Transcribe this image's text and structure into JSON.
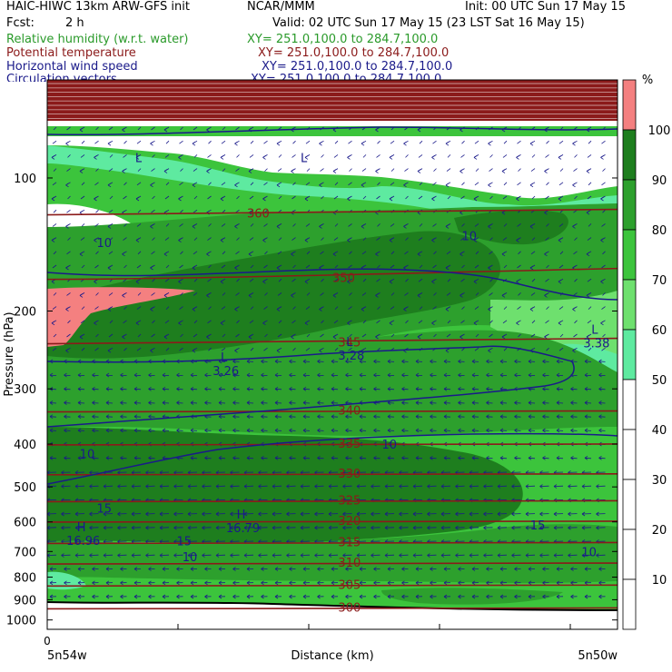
{
  "header": {
    "model": "HAIC-HIWC 13km ARW-GFS init",
    "org": "NCAR/MMM",
    "init": "Init: 00 UTC Sun 17 May 15",
    "fcst_label": "Fcst:",
    "fcst_value": "2 h",
    "valid": "Valid: 02 UTC Sun 17 May 15 (23 LST Sat 16 May 15)"
  },
  "fields": [
    {
      "name": "Relative humidity (w.r.t. water)",
      "xy": "XY= 251.0,100.0 to 284.7,100.0",
      "color": "#2a9a2a"
    },
    {
      "name": "Potential temperature",
      "xy": "XY= 251.0,100.0 to 284.7,100.0",
      "color": "#8b1a1a"
    },
    {
      "name": "Horizontal wind speed",
      "xy": "XY= 251.0,100.0 to 284.7,100.0",
      "color": "#1a1a8a"
    },
    {
      "name": "Circulation vectors",
      "xy": "XY= 251.0,100.0 to 284.7,100.0",
      "color": "#1a1a8a"
    }
  ],
  "chart_data": {
    "type": "heatmap",
    "title": "Relative humidity (w.r.t. water), potential temperature, horizontal wind speed, circulation vectors",
    "xlabel": "Distance (km)",
    "ylabel": "Pressure (hPa)",
    "x_tick_labels": [
      "0"
    ],
    "x_end_labels": [
      "5n54w",
      "5n50w"
    ],
    "y_ticks": [
      100,
      200,
      300,
      400,
      500,
      600,
      700,
      800,
      900,
      1000
    ],
    "ylim": [
      1050,
      60
    ],
    "y_scale": "log-pressure",
    "colorbar": {
      "unit": "%",
      "levels": [
        10,
        20,
        30,
        40,
        50,
        60,
        70,
        80,
        90,
        100
      ],
      "colors": [
        "#ffffff",
        "#ffffff",
        "#ffffff",
        "#ffffff",
        "#ffffff",
        "#5eeaa0",
        "#6ee06e",
        "#3cc43c",
        "#2da02d",
        "#1e7e1e",
        "#f48080"
      ]
    },
    "theta_contours": [
      {
        "label": "360",
        "p": 120,
        "x_frac": 0.37
      },
      {
        "label": "350",
        "p": 168,
        "x_frac": 0.52
      },
      {
        "label": "345",
        "p": 235,
        "x_frac": 0.53
      },
      {
        "label": "340",
        "p": 335,
        "x_frac": 0.53
      },
      {
        "label": "335",
        "p": 398,
        "x_frac": 0.53
      },
      {
        "label": "330",
        "p": 465,
        "x_frac": 0.53
      },
      {
        "label": "325",
        "p": 535,
        "x_frac": 0.53
      },
      {
        "label": "320",
        "p": 595,
        "x_frac": 0.53
      },
      {
        "label": "315",
        "p": 665,
        "x_frac": 0.53
      },
      {
        "label": "310",
        "p": 740,
        "x_frac": 0.53
      },
      {
        "label": "305",
        "p": 830,
        "x_frac": 0.53
      },
      {
        "label": "300",
        "p": 935,
        "x_frac": 0.53
      }
    ],
    "wind_contours": [
      {
        "label": "10",
        "p": 140,
        "x_frac": 0.1
      },
      {
        "label": "10",
        "p": 135,
        "x_frac": 0.74
      },
      {
        "label": "10",
        "p": 400,
        "x_frac": 0.6
      },
      {
        "label": "10",
        "p": 420,
        "x_frac": 0.07
      },
      {
        "label": "15",
        "p": 558,
        "x_frac": 0.1
      },
      {
        "label": "15",
        "p": 610,
        "x_frac": 0.86
      },
      {
        "label": "15",
        "p": 662,
        "x_frac": 0.24
      },
      {
        "label": "10",
        "p": 720,
        "x_frac": 0.25
      },
      {
        "label": "10",
        "p": 700,
        "x_frac": 0.95
      }
    ],
    "extrema": [
      {
        "type": "L",
        "p": 92,
        "x_frac": 0.16
      },
      {
        "type": "L",
        "p": 92,
        "x_frac": 0.45
      },
      {
        "type": "L",
        "p": 240,
        "x_frac": 0.53,
        "value": "3.28"
      },
      {
        "type": "L",
        "p": 225,
        "x_frac": 0.96,
        "value": "3.38"
      },
      {
        "type": "L",
        "p": 260,
        "x_frac": 0.31,
        "value": "3.26"
      },
      {
        "type": "H",
        "p": 590,
        "x_frac": 0.34,
        "value": "16.79"
      },
      {
        "type": "H",
        "p": 630,
        "x_frac": 0.06,
        "value": "16.96"
      }
    ]
  }
}
